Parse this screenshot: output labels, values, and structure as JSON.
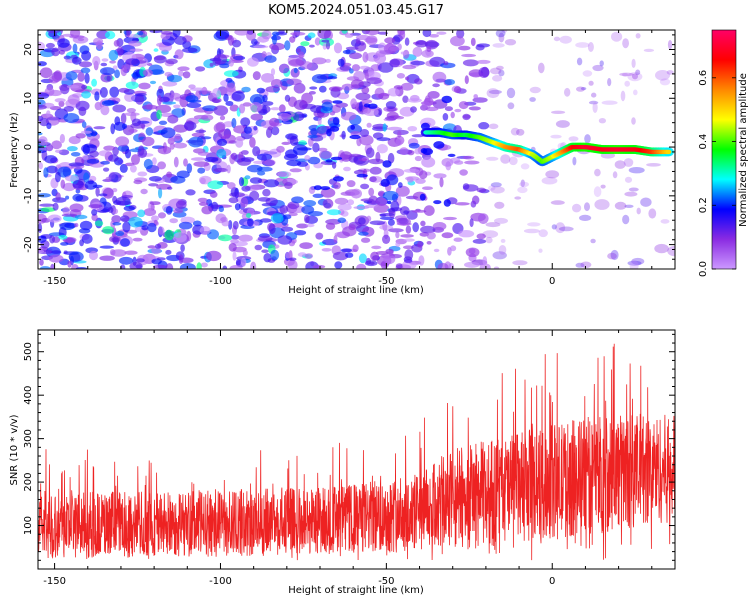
{
  "figure": {
    "title": "KOM5.2024.051.03.45.G17"
  },
  "chart_data": [
    {
      "type": "heatmap",
      "xlabel": "Height of straight line (km)",
      "ylabel": "Frequency (Hz)",
      "xlim": [
        -155,
        37
      ],
      "ylim": [
        -25,
        24
      ],
      "xticks": [
        -150,
        -100,
        -50,
        0
      ],
      "yticks": [
        -20,
        -10,
        0,
        10,
        20
      ],
      "colorbar": {
        "label": "Normalized spectral amplitude",
        "range": [
          0,
          0.75
        ],
        "ticks": [
          0.0,
          0.2,
          0.4,
          0.6
        ],
        "colormap": [
          "#cc99ff",
          "#8a2be2",
          "#0000ff",
          "#00ffff",
          "#00ff00",
          "#ffff00",
          "#ff8800",
          "#ff0000",
          "#ff0066"
        ]
      },
      "ridge": {
        "x": [
          -38,
          -34,
          -30,
          -26,
          -22,
          -18,
          -14,
          -10,
          -6,
          -3,
          0,
          3,
          6,
          10,
          15,
          20,
          25,
          30,
          35
        ],
        "y": [
          3,
          3,
          2.5,
          2.5,
          2,
          1,
          0,
          -0.5,
          -1.5,
          -3,
          -2,
          -1,
          0,
          0,
          -0.5,
          -0.5,
          -0.5,
          -1,
          -1
        ],
        "amplitude": [
          0.3,
          0.35,
          0.4,
          0.35,
          0.4,
          0.45,
          0.55,
          0.6,
          0.45,
          0.4,
          0.45,
          0.55,
          0.65,
          0.7,
          0.68,
          0.7,
          0.68,
          0.62,
          0.5
        ]
      }
    },
    {
      "type": "line",
      "xlabel": "Height of straight line (km)",
      "ylabel": "SNR (10 * v/v)",
      "xlim": [
        -155,
        37
      ],
      "ylim": [
        0,
        550
      ],
      "xticks": [
        -150,
        -100,
        -50,
        0
      ],
      "yticks": [
        100,
        200,
        300,
        400,
        500
      ],
      "color": "#ee2222",
      "envelope": {
        "x": [
          -155,
          -100,
          -60,
          -40,
          -30,
          0,
          15,
          30,
          37
        ],
        "baseline": [
          100,
          105,
          115,
          130,
          160,
          200,
          220,
          230,
          230
        ],
        "spread": [
          110,
          110,
          115,
          130,
          170,
          190,
          200,
          180,
          180
        ]
      }
    }
  ]
}
